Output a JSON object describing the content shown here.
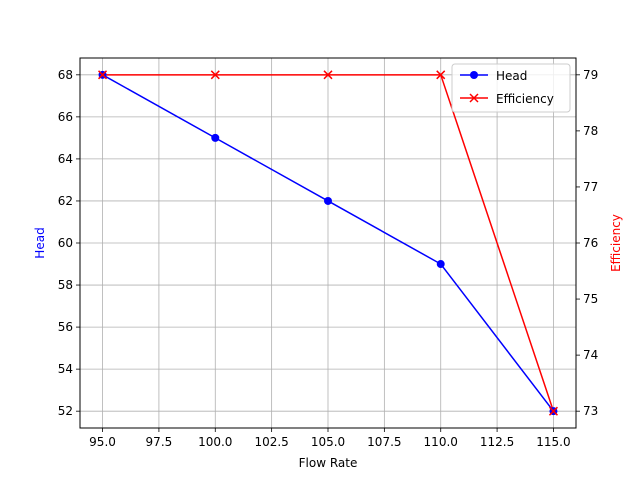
{
  "chart_data": {
    "type": "line",
    "title": "",
    "xlabel": "Flow Rate",
    "ylabel_left": "Head",
    "ylabel_right": "Efficiency",
    "x": [
      95,
      100,
      105,
      110,
      115
    ],
    "xlim": [
      94,
      116
    ],
    "ylim_left": [
      51.2,
      68.8
    ],
    "ylim_right": [
      72.7,
      79.3
    ],
    "x_ticks": [
      "95.0",
      "97.5",
      "100.0",
      "102.5",
      "105.0",
      "107.5",
      "110.0",
      "112.5",
      "115.0"
    ],
    "y_ticks_left": [
      "52",
      "54",
      "56",
      "58",
      "60",
      "62",
      "64",
      "66",
      "68"
    ],
    "y_ticks_right": [
      "73",
      "74",
      "75",
      "76",
      "77",
      "78",
      "79"
    ],
    "grid": true,
    "legend_position": "top-right",
    "series": [
      {
        "name": "Head",
        "axis": "left",
        "color": "#0000ff",
        "marker": "circle",
        "values": [
          68,
          65,
          62,
          59,
          52
        ]
      },
      {
        "name": "Efficiency",
        "axis": "right",
        "color": "#ff0000",
        "marker": "x",
        "values": [
          79,
          79,
          79,
          79,
          73
        ]
      }
    ]
  }
}
